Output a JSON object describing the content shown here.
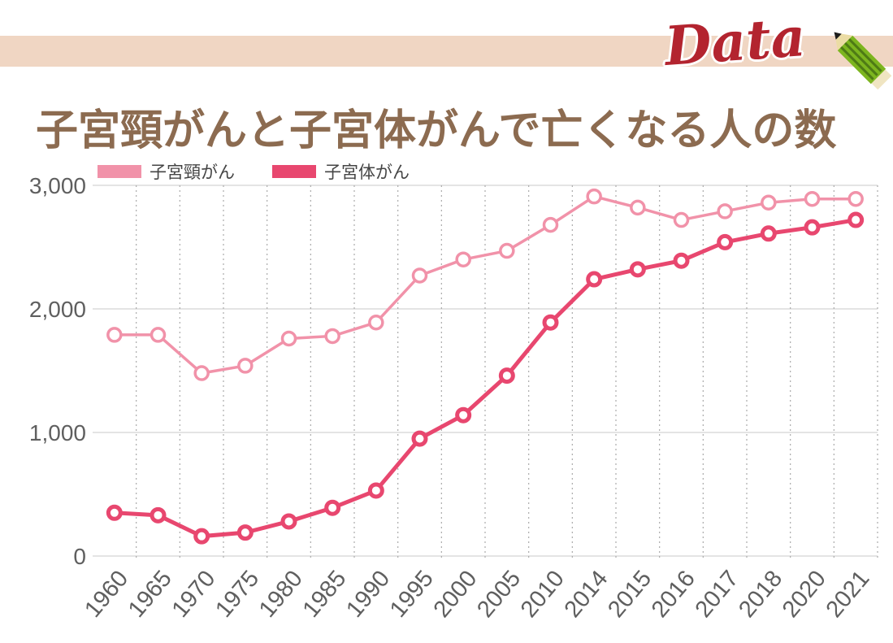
{
  "header": {
    "band_color": "#F0D6C3",
    "logo_text": "Data",
    "logo_color": "#B3242F",
    "pencil_body_color": "#7CB51F",
    "pencil_stripe_color": "#4E7A15",
    "pencil_wood_color": "#EBDCA4",
    "pencil_lead_color": "#1d1d1d",
    "pencil_eraser_color": "#F0E5C2"
  },
  "title": {
    "text": "子宮頸がんと子宮体がんで亡くなる人の数",
    "color": "#8C6B50"
  },
  "chart_data": {
    "type": "line",
    "title": "子宮頸がんと子宮体がんで亡くなる人の数",
    "categories": [
      "1960",
      "1965",
      "1970",
      "1975",
      "1980",
      "1985",
      "1990",
      "1995",
      "2000",
      "2005",
      "2010",
      "2014",
      "2015",
      "2016",
      "2017",
      "2018",
      "2020",
      "2021"
    ],
    "series": [
      {
        "name": "子宮頸がん",
        "color": "#F192A9",
        "values": [
          1790,
          1790,
          1480,
          1540,
          1760,
          1780,
          1890,
          2270,
          2400,
          2470,
          2680,
          2910,
          2820,
          2720,
          2790,
          2860,
          2890,
          2890
        ]
      },
      {
        "name": "子宮体がん",
        "color": "#E8476F",
        "values": [
          350,
          330,
          160,
          190,
          280,
          390,
          530,
          950,
          1140,
          1460,
          1890,
          2240,
          2320,
          2390,
          2540,
          2610,
          2660,
          2720
        ]
      }
    ],
    "xlabel": "",
    "ylabel": "",
    "ylim": [
      0,
      3000
    ],
    "yticks": [
      {
        "value": 0,
        "label": "0"
      },
      {
        "value": 1000,
        "label": "1,000"
      },
      {
        "value": 2000,
        "label": "2,000"
      },
      {
        "value": 3000,
        "label": "3,000"
      }
    ],
    "grid": true,
    "legend_position": "top-left",
    "x_tick_rotation": -50,
    "axis_text_color": "#5F5F5F",
    "hgrid_color": "#DCDCDC",
    "vgrid_color": "#ABABAB"
  }
}
